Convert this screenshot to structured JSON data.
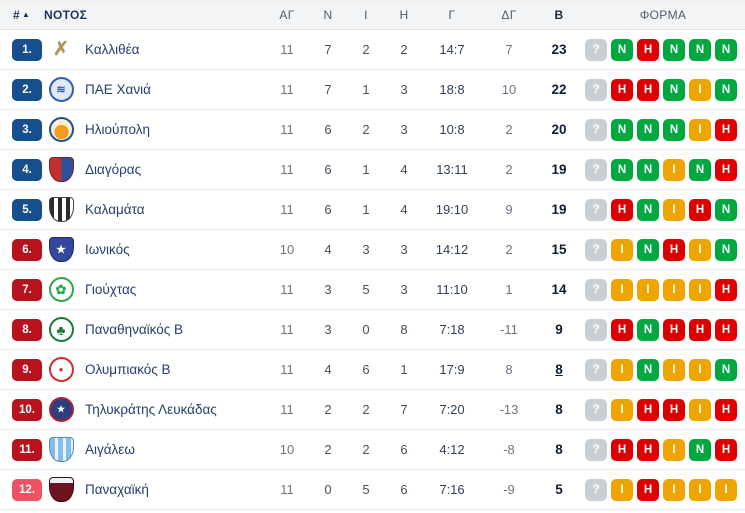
{
  "table": {
    "headers": {
      "rank": "#",
      "sort_indicator": "▲",
      "group": "ΝΟΤΟΣ",
      "played": "ΑΓ",
      "wins": "Ν",
      "draws": "Ι",
      "losses": "Η",
      "goals": "Γ",
      "diff": "ΔΓ",
      "points": "Β",
      "form": "ΦΟΡΜΑ"
    },
    "rows": [
      {
        "rank": "1.",
        "rank_color": "#174f8d",
        "team": "Καλλιθέα",
        "played": "11",
        "wins": "7",
        "draws": "2",
        "losses": "2",
        "goals": "14:7",
        "diff": "7",
        "points": "23",
        "points_underline": false,
        "logo": {
          "kind": "mark",
          "bg": "transparent",
          "border": "none",
          "glyph": "✗",
          "glyph_color": "#b3945a",
          "glyph_size": "19px"
        },
        "form": [
          "?",
          "N",
          "H",
          "N",
          "N",
          "N"
        ]
      },
      {
        "rank": "2.",
        "rank_color": "#174f8d",
        "team": "ΠΑΕ Χανιά",
        "played": "11",
        "wins": "7",
        "draws": "1",
        "losses": "3",
        "goals": "18:8",
        "diff": "10",
        "points": "22",
        "points_underline": false,
        "logo": {
          "kind": "circle",
          "bg": "#dfe9f8",
          "border": "2px solid #2f5fae",
          "glyph": "≋",
          "glyph_color": "#2f5fae",
          "glyph_size": "11px"
        },
        "form": [
          "?",
          "H",
          "H",
          "N",
          "I",
          "N"
        ]
      },
      {
        "rank": "3.",
        "rank_color": "#174f8d",
        "team": "Ηλιούπολη",
        "played": "11",
        "wins": "6",
        "draws": "2",
        "losses": "3",
        "goals": "10:8",
        "diff": "2",
        "points": "20",
        "points_underline": false,
        "logo": {
          "kind": "circle",
          "bg": "radial-gradient(circle at 50% 62%, #f59b1e 0 42%, #fdeecd 43%)",
          "border": "2px solid #1d4f9a",
          "glyph": "",
          "glyph_color": "",
          "glyph_size": "10px"
        },
        "form": [
          "?",
          "N",
          "N",
          "N",
          "I",
          "H"
        ]
      },
      {
        "rank": "4.",
        "rank_color": "#174f8d",
        "team": "Διαγόρας",
        "played": "11",
        "wins": "6",
        "draws": "1",
        "losses": "4",
        "goals": "13:11",
        "diff": "2",
        "points": "19",
        "points_underline": false,
        "logo": {
          "kind": "shield",
          "bg": "linear-gradient(90deg,#c03030 50%,#2c4f9e 50%)",
          "border": "1px solid #7b1f2a",
          "glyph": "",
          "glyph_color": "",
          "glyph_size": "10px"
        },
        "form": [
          "?",
          "N",
          "N",
          "I",
          "N",
          "H"
        ]
      },
      {
        "rank": "5.",
        "rank_color": "#174f8d",
        "team": "Καλαμάτα",
        "played": "11",
        "wins": "6",
        "draws": "1",
        "losses": "4",
        "goals": "19:10",
        "diff": "9",
        "points": "19",
        "points_underline": false,
        "logo": {
          "kind": "shield",
          "bg": "repeating-linear-gradient(90deg,#2b2b2b 0 4px,#ffffff 4px 8px)",
          "border": "1px solid #444",
          "glyph": "",
          "glyph_color": "",
          "glyph_size": "10px"
        },
        "form": [
          "?",
          "H",
          "N",
          "I",
          "H",
          "N"
        ]
      },
      {
        "rank": "6.",
        "rank_color": "#b6131f",
        "team": "Ιωνικός",
        "played": "10",
        "wins": "4",
        "draws": "3",
        "losses": "3",
        "goals": "14:12",
        "diff": "2",
        "points": "15",
        "points_underline": false,
        "logo": {
          "kind": "shield",
          "bg": "#33479c",
          "border": "1px solid #1d2b66",
          "glyph": "★",
          "glyph_color": "#ffffff",
          "glyph_size": "11px"
        },
        "form": [
          "?",
          "I",
          "N",
          "H",
          "I",
          "N"
        ]
      },
      {
        "rank": "7.",
        "rank_color": "#b6131f",
        "team": "Γιούχτας",
        "played": "11",
        "wins": "3",
        "draws": "5",
        "losses": "3",
        "goals": "11:10",
        "diff": "1",
        "points": "14",
        "points_underline": false,
        "logo": {
          "kind": "circle",
          "bg": "#ffffff",
          "border": "2px solid #2da84a",
          "glyph": "✿",
          "glyph_color": "#2da84a",
          "glyph_size": "13px"
        },
        "form": [
          "?",
          "I",
          "I",
          "I",
          "I",
          "H"
        ]
      },
      {
        "rank": "8.",
        "rank_color": "#b6131f",
        "team": "Παναθηναϊκός Β",
        "played": "11",
        "wins": "3",
        "draws": "0",
        "losses": "8",
        "goals": "7:18",
        "diff": "-11",
        "points": "9",
        "points_underline": false,
        "logo": {
          "kind": "circle",
          "bg": "#ffffff",
          "border": "2px solid #1d7a3a",
          "glyph": "♣",
          "glyph_color": "#1d7a3a",
          "glyph_size": "14px"
        },
        "form": [
          "?",
          "H",
          "N",
          "H",
          "H",
          "H"
        ]
      },
      {
        "rank": "9.",
        "rank_color": "#b6131f",
        "team": "Ολυμπιακός Β",
        "played": "11",
        "wins": "4",
        "draws": "6",
        "losses": "1",
        "goals": "17:9",
        "diff": "8",
        "points": "8",
        "points_underline": true,
        "logo": {
          "kind": "circle",
          "bg": "#ffffff",
          "border": "2px solid #d42b2b",
          "glyph": "●",
          "glyph_color": "#d42b2b",
          "glyph_size": "8px"
        },
        "form": [
          "?",
          "I",
          "N",
          "I",
          "I",
          "N"
        ]
      },
      {
        "rank": "10.",
        "rank_color": "#b6131f",
        "team": "Τηλυκράτης Λευκάδας",
        "played": "11",
        "wins": "2",
        "draws": "2",
        "losses": "7",
        "goals": "7:20",
        "diff": "-13",
        "points": "8",
        "points_underline": false,
        "logo": {
          "kind": "circle",
          "bg": "#2a3f80",
          "border": "2px solid #b02030",
          "glyph": "★",
          "glyph_color": "#ffffff",
          "glyph_size": "9px"
        },
        "form": [
          "?",
          "I",
          "H",
          "H",
          "I",
          "H"
        ]
      },
      {
        "rank": "11.",
        "rank_color": "#b6131f",
        "team": "Αιγάλεω",
        "played": "10",
        "wins": "2",
        "draws": "2",
        "losses": "6",
        "goals": "4:12",
        "diff": "-8",
        "points": "8",
        "points_underline": false,
        "logo": {
          "kind": "shield",
          "bg": "repeating-linear-gradient(90deg,#85bde6 0 5px,#e8f3fb 5px 8px)",
          "border": "1px solid #4a90c4",
          "glyph": "",
          "glyph_color": "",
          "glyph_size": "10px"
        },
        "form": [
          "?",
          "H",
          "H",
          "I",
          "N",
          "H"
        ]
      },
      {
        "rank": "12.",
        "rank_color": "#ee5162",
        "team": "Παναχαϊκή",
        "played": "11",
        "wins": "0",
        "draws": "5",
        "losses": "6",
        "goals": "7:16",
        "diff": "-9",
        "points": "5",
        "points_underline": false,
        "logo": {
          "kind": "shield",
          "bg": "linear-gradient(180deg,#f2f2f2 0 22%,#6e1320 22%)",
          "border": "1px solid #3a0d14",
          "glyph": "",
          "glyph_color": "",
          "glyph_size": "10px"
        },
        "form": [
          "?",
          "I",
          "H",
          "I",
          "I",
          "I"
        ]
      }
    ],
    "form_colors": {
      "?": "#c9cfd4",
      "N": "#00a83f",
      "H": "#dd0000",
      "I": "#efa500"
    }
  }
}
